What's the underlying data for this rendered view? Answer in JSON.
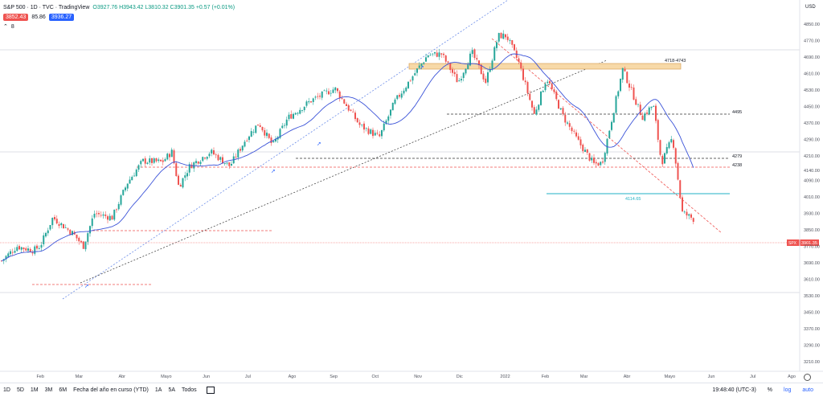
{
  "legend": {
    "symbol": "S&P 500 · 1D · TVC · TradingView",
    "ohlc": "O3927.76 H3943.42 L3810.32 C3901.35 +0.57 (+0.01%)",
    "badge_sell": "3852.43",
    "badge_spread": "85.86",
    "badge_buy": "3936.27",
    "indicator_count": "8",
    "colors": {
      "sell": "#ef5350",
      "buy": "#2962ff"
    }
  },
  "chart_data": {
    "type": "candlestick",
    "currency_label": "USD",
    "y_ticks": [
      4850,
      4770,
      4690,
      4610,
      4530,
      4450,
      4370,
      4290,
      4210,
      4140,
      4090,
      4010,
      3930,
      3850,
      3770,
      3690,
      3610,
      3530,
      3450,
      3370,
      3290,
      3210
    ],
    "x_ticks": [
      "Feb",
      "Mar",
      "Abr",
      "Mayo",
      "Jun",
      "Jul",
      "Ago",
      "Sep",
      "Oct",
      "Nov",
      "Dic",
      "2022",
      "Feb",
      "Mar",
      "Abr",
      "Mayo",
      "Jun",
      "Jul",
      "Ago"
    ],
    "zone_label": "4718-4743",
    "zone": [
      4718,
      4743
    ],
    "levels": [
      {
        "label": "4495",
        "value": 4495,
        "style": "dash-black"
      },
      {
        "label": "4279",
        "value": 4279,
        "style": "dash-black"
      },
      {
        "label": "4238",
        "value": 4238,
        "style": "dash-red"
      },
      {
        "label": "4114.65",
        "value": 4114.65,
        "style": "solid-teal"
      }
    ],
    "price_label": "SPX",
    "price_value": "3901.35",
    "ma_color": "#3b53d8",
    "up_color": "#26a69a",
    "down_color": "#ef5350",
    "close_path": [
      [
        "2021-01-04",
        3700
      ],
      [
        "2021-01-15",
        3770
      ],
      [
        "2021-01-27",
        3750
      ],
      [
        "2021-02-01",
        3773
      ],
      [
        "2021-02-10",
        3910
      ],
      [
        "2021-02-25",
        3830
      ],
      [
        "2021-03-04",
        3770
      ],
      [
        "2021-03-12",
        3930
      ],
      [
        "2021-03-25",
        3910
      ],
      [
        "2021-04-05",
        4080
      ],
      [
        "2021-04-16",
        4185
      ],
      [
        "2021-04-30",
        4180
      ],
      [
        "2021-05-07",
        4230
      ],
      [
        "2021-05-12",
        4060
      ],
      [
        "2021-05-20",
        4160
      ],
      [
        "2021-06-04",
        4230
      ],
      [
        "2021-06-18",
        4160
      ],
      [
        "2021-06-30",
        4297
      ],
      [
        "2021-07-09",
        4370
      ],
      [
        "2021-07-19",
        4260
      ],
      [
        "2021-07-30",
        4395
      ],
      [
        "2021-08-16",
        4480
      ],
      [
        "2021-08-30",
        4528
      ],
      [
        "2021-09-02",
        4537
      ],
      [
        "2021-09-20",
        4358
      ],
      [
        "2021-10-04",
        4300
      ],
      [
        "2021-10-15",
        4470
      ],
      [
        "2021-10-29",
        4605
      ],
      [
        "2021-11-08",
        4700
      ],
      [
        "2021-11-18",
        4705
      ],
      [
        "2021-11-30",
        4567
      ],
      [
        "2021-12-10",
        4712
      ],
      [
        "2021-12-20",
        4568
      ],
      [
        "2021-12-29",
        4793
      ],
      [
        "2022-01-04",
        4793
      ],
      [
        "2022-01-13",
        4660
      ],
      [
        "2022-01-24",
        4410
      ],
      [
        "2022-02-02",
        4590
      ],
      [
        "2022-02-14",
        4400
      ],
      [
        "2022-02-24",
        4288
      ],
      [
        "2022-03-08",
        4170
      ],
      [
        "2022-03-14",
        4175
      ],
      [
        "2022-03-29",
        4631
      ],
      [
        "2022-04-12",
        4398
      ],
      [
        "2022-04-20",
        4459
      ],
      [
        "2022-04-26",
        4175
      ],
      [
        "2022-05-04",
        4300
      ],
      [
        "2022-05-11",
        3935
      ],
      [
        "2022-05-20",
        3900
      ],
      [
        "2022-05-24",
        3941
      ],
      [
        "2022-05-20",
        3901
      ]
    ]
  },
  "timeframes": {
    "items": [
      "1D",
      "5D",
      "1M",
      "3M",
      "6M",
      "Fecha del año en curso (YTD)",
      "1A",
      "5A",
      "Todos"
    ],
    "clock": "19:48:40 (UTC-3)",
    "pct": "%",
    "log": "log",
    "auto": "auto"
  }
}
